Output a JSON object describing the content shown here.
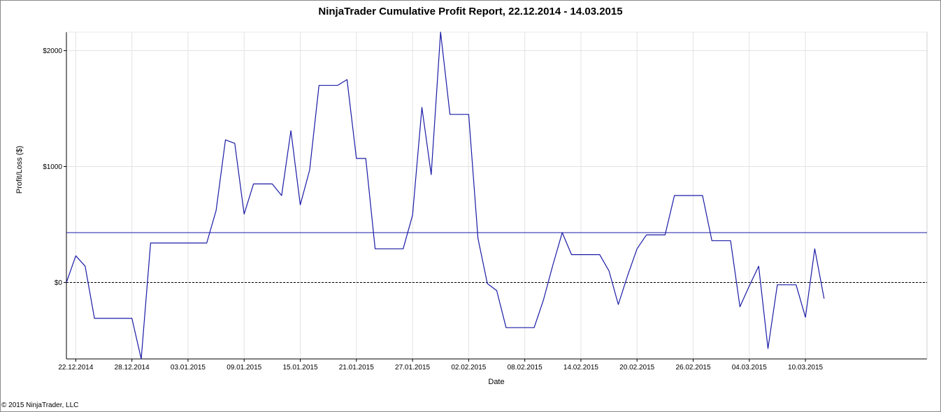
{
  "chart_data": {
    "type": "line",
    "title": "NinjaTrader Cumulative Profit Report, 22.12.2014 - 14.03.2015",
    "xlabel": "Date",
    "ylabel": "Profit/Loss ($)",
    "x_ticks": [
      "22.12.2014",
      "28.12.2014",
      "03.01.2015",
      "09.01.2015",
      "15.01.2015",
      "21.01.2015",
      "27.01.2015",
      "02.02.2015",
      "08.02.2015",
      "14.02.2015",
      "20.02.2015",
      "26.02.2015",
      "04.03.2015",
      "10.03.2015"
    ],
    "y_ticks": [
      {
        "value": 0,
        "label": "$0"
      },
      {
        "value": 1000,
        "label": "$1000"
      },
      {
        "value": 2000,
        "label": "$2000"
      }
    ],
    "xlim": [
      "21.12.2014",
      "23.03.2015"
    ],
    "ylim": [
      -660,
      2160
    ],
    "grid": true,
    "series": [
      {
        "color": "#1a1aa6",
        "points": [
          [
            "21.12.2014",
            0
          ],
          [
            "22.12.2014",
            230
          ],
          [
            "23.12.2014",
            140
          ],
          [
            "24.12.2014",
            -310
          ],
          [
            "28.12.2014",
            -310
          ],
          [
            "29.12.2014",
            -660
          ],
          [
            "30.12.2014",
            340
          ],
          [
            "05.01.2015",
            340
          ],
          [
            "06.01.2015",
            620
          ],
          [
            "07.01.2015",
            1230
          ],
          [
            "08.01.2015",
            1200
          ],
          [
            "09.01.2015",
            590
          ],
          [
            "10.01.2015",
            850
          ],
          [
            "12.01.2015",
            850
          ],
          [
            "13.01.2015",
            750
          ],
          [
            "14.01.2015",
            1310
          ],
          [
            "15.01.2015",
            670
          ],
          [
            "16.01.2015",
            970
          ],
          [
            "17.01.2015",
            1700
          ],
          [
            "19.01.2015",
            1700
          ],
          [
            "20.01.2015",
            1750
          ],
          [
            "21.01.2015",
            1070
          ],
          [
            "22.01.2015",
            1070
          ],
          [
            "23.01.2015",
            290
          ],
          [
            "26.01.2015",
            290
          ],
          [
            "27.01.2015",
            580
          ],
          [
            "28.01.2015",
            1510
          ],
          [
            "29.01.2015",
            930
          ],
          [
            "30.01.2015",
            2160
          ],
          [
            "31.01.2015",
            1450
          ],
          [
            "02.02.2015",
            1450
          ],
          [
            "03.02.2015",
            380
          ],
          [
            "04.02.2015",
            -10
          ],
          [
            "05.02.2015",
            -70
          ],
          [
            "06.02.2015",
            -390
          ],
          [
            "09.02.2015",
            -390
          ],
          [
            "10.02.2015",
            -150
          ],
          [
            "11.02.2015",
            150
          ],
          [
            "12.02.2015",
            430
          ],
          [
            "13.02.2015",
            240
          ],
          [
            "16.02.2015",
            240
          ],
          [
            "17.02.2015",
            100
          ],
          [
            "18.02.2015",
            -190
          ],
          [
            "19.02.2015",
            60
          ],
          [
            "20.02.2015",
            290
          ],
          [
            "21.02.2015",
            410
          ],
          [
            "23.02.2015",
            410
          ],
          [
            "24.02.2015",
            750
          ],
          [
            "27.02.2015",
            750
          ],
          [
            "28.02.2015",
            360
          ],
          [
            "02.03.2015",
            360
          ],
          [
            "03.03.2015",
            -210
          ],
          [
            "04.03.2015",
            -30
          ],
          [
            "05.03.2015",
            140
          ],
          [
            "06.03.2015",
            -570
          ],
          [
            "07.03.2015",
            -20
          ],
          [
            "09.03.2015",
            -20
          ],
          [
            "10.03.2015",
            -300
          ],
          [
            "11.03.2015",
            290
          ],
          [
            "12.03.2015",
            -140
          ]
        ]
      }
    ],
    "reference_lines": [
      {
        "y": 430,
        "style": "solid",
        "color": "#1a1aa6"
      },
      {
        "y": 0,
        "style": "dashed",
        "color": "#000000"
      }
    ]
  },
  "footer": {
    "copyright": "© 2015 NinjaTrader, LLC"
  }
}
